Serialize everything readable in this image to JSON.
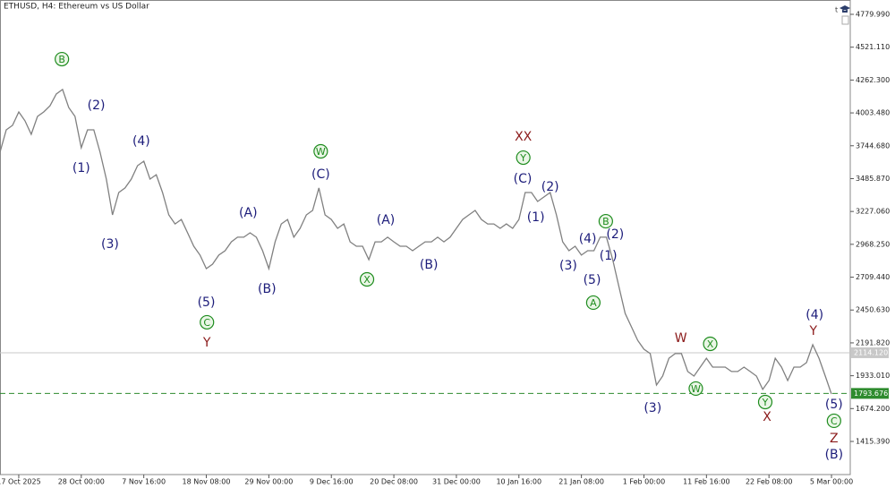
{
  "chart_data": {
    "type": "line",
    "title": "ETHUSD, H4:  Ethereum vs US Dollar",
    "x": [
      0,
      1,
      2,
      3,
      4,
      5,
      6,
      7,
      8,
      9,
      10,
      11,
      12,
      13,
      14,
      15,
      16,
      17,
      18,
      19,
      20,
      21,
      22,
      23,
      24,
      25,
      26,
      27,
      28,
      29,
      30,
      31,
      32,
      33,
      34,
      35,
      36,
      37,
      38,
      39,
      40,
      41,
      42,
      43,
      44,
      45,
      46,
      47,
      48,
      49,
      50,
      51,
      52,
      53,
      54,
      55,
      56,
      57,
      58,
      59,
      60,
      61,
      62,
      63,
      64,
      65,
      66,
      67,
      68,
      69,
      70,
      71,
      72,
      73,
      74,
      75,
      76,
      77,
      78,
      79,
      80,
      81,
      82,
      83,
      84,
      85,
      86,
      87,
      88,
      89,
      90,
      91,
      92,
      93,
      94,
      95,
      96,
      97,
      98,
      99,
      100,
      101,
      102,
      103,
      104,
      105,
      106,
      107,
      108,
      109,
      110,
      111,
      112,
      113,
      114,
      115,
      116,
      117,
      118,
      119,
      120,
      121,
      122,
      123,
      124,
      125,
      126,
      127,
      128,
      129,
      130,
      131,
      132,
      133
    ],
    "series": [
      {
        "name": "ETHUSD",
        "color": "#808080",
        "values": [
          3694,
          3870,
          3905,
          4011,
          3941,
          3835,
          3976,
          4011,
          4060,
          4152,
          4188,
          4046,
          3976,
          3729,
          3870,
          3870,
          3694,
          3482,
          3200,
          3376,
          3412,
          3482,
          3588,
          3623,
          3482,
          3517,
          3376,
          3200,
          3129,
          3164,
          3059,
          2953,
          2883,
          2777,
          2812,
          2883,
          2918,
          2988,
          3024,
          3024,
          3059,
          3024,
          2918,
          2777,
          2988,
          3129,
          3164,
          3024,
          3094,
          3200,
          3235,
          3412,
          3200,
          3164,
          3094,
          3129,
          2988,
          2953,
          2953,
          2847,
          2988,
          2988,
          3024,
          2988,
          2953,
          2953,
          2918,
          2953,
          2988,
          2988,
          3024,
          2988,
          3024,
          3094,
          3164,
          3200,
          3235,
          3164,
          3129,
          3129,
          3094,
          3129,
          3094,
          3164,
          3376,
          3376,
          3306,
          3341,
          3376,
          3200,
          2988,
          2918,
          2953,
          2883,
          2918,
          2918,
          3024,
          3024,
          2847,
          2636,
          2424,
          2318,
          2212,
          2142,
          2107,
          1860,
          1930,
          2071,
          2107,
          2107,
          1966,
          1930,
          2001,
          2071,
          2001,
          2001,
          2001,
          1966,
          1966,
          2001,
          1966,
          1930,
          1825,
          1895,
          2071,
          2001,
          1895,
          2001,
          2001,
          2036,
          2177,
          2071,
          1930,
          1789
        ]
      }
    ],
    "xlim": [
      0,
      136
    ],
    "ylim": [
      1154.4,
      4892.85
    ],
    "xticks": [
      {
        "value": 3,
        "label": "17 Oct 2025"
      },
      {
        "value": 13,
        "label": "28 Oct 00:00"
      },
      {
        "value": 23,
        "label": "7 Nov 16:00"
      },
      {
        "value": 33,
        "label": "18 Nov 08:00"
      },
      {
        "value": 43,
        "label": "29 Nov 00:00"
      },
      {
        "value": 53,
        "label": "9 Dec 16:00"
      },
      {
        "value": 63,
        "label": "20 Dec 08:00"
      },
      {
        "value": 73,
        "label": "31 Dec 00:00"
      },
      {
        "value": 83,
        "label": "10 Jan 16:00"
      },
      {
        "value": 93,
        "label": "21 Jan 08:00"
      },
      {
        "value": 103,
        "label": "1 Feb 00:00"
      },
      {
        "value": 113,
        "label": "11 Feb 16:00"
      },
      {
        "value": 123,
        "label": "22 Feb 08:00"
      },
      {
        "value": 133,
        "label": "5 Mar 00:00"
      }
    ],
    "yticks": [
      {
        "value": 4779.99,
        "label": "4779.990"
      },
      {
        "value": 4521.11,
        "label": "4521.110"
      },
      {
        "value": 4262.3,
        "label": "4262.300"
      },
      {
        "value": 4003.48,
        "label": "4003.480"
      },
      {
        "value": 3744.68,
        "label": "3744.680"
      },
      {
        "value": 3485.87,
        "label": "3485.870"
      },
      {
        "value": 3227.06,
        "label": "3227.060"
      },
      {
        "value": 2968.25,
        "label": "2968.250"
      },
      {
        "value": 2709.44,
        "label": "2709.440"
      },
      {
        "value": 2450.63,
        "label": "2450.630"
      },
      {
        "value": 2191.82,
        "label": "2191.820"
      },
      {
        "value": 1933.01,
        "label": "1933.010"
      },
      {
        "value": 1674.2,
        "label": "1674.200"
      },
      {
        "value": 1415.39,
        "label": "1415.390"
      }
    ],
    "levels": [
      {
        "value": 2114.12,
        "label": "2114.120",
        "color": "#c8c8c8",
        "dashed": false
      },
      {
        "value": 1793.676,
        "label": "1793.676",
        "color": "#2e8b2e",
        "dashed": true
      }
    ],
    "annotations": [
      {
        "text": "B",
        "x": 9.9,
        "y": 4427,
        "color": "#1e8c1e",
        "circled": true
      },
      {
        "text": "(2)",
        "x": 15.4,
        "y": 4067,
        "color": "#1c1c7a",
        "circled": false
      },
      {
        "text": "(1)",
        "x": 13,
        "y": 3574,
        "color": "#1c1c7a",
        "circled": false
      },
      {
        "text": "(4)",
        "x": 22.6,
        "y": 3785,
        "color": "#1c1c7a",
        "circled": false
      },
      {
        "text": "(3)",
        "x": 17.6,
        "y": 2974,
        "color": "#1c1c7a",
        "circled": false
      },
      {
        "text": "(5)",
        "x": 33,
        "y": 2516,
        "color": "#1c1c7a",
        "circled": false
      },
      {
        "text": "C",
        "x": 33.1,
        "y": 2354,
        "color": "#1e8c1e",
        "circled": true
      },
      {
        "text": "Y",
        "x": 33.1,
        "y": 2198,
        "color": "#8b1a1a",
        "circled": false
      },
      {
        "text": "(A)",
        "x": 39.7,
        "y": 3221,
        "color": "#1c1c7a",
        "circled": false
      },
      {
        "text": "(B)",
        "x": 42.7,
        "y": 2622,
        "color": "#1c1c7a",
        "circled": false
      },
      {
        "text": "W",
        "x": 51.3,
        "y": 3701,
        "color": "#1e8c1e",
        "circled": true
      },
      {
        "text": "(C)",
        "x": 51.3,
        "y": 3524,
        "color": "#1c1c7a",
        "circled": false
      },
      {
        "text": "X",
        "x": 58.7,
        "y": 2692,
        "color": "#1e8c1e",
        "circled": true
      },
      {
        "text": "(A)",
        "x": 61.7,
        "y": 3165,
        "color": "#1c1c7a",
        "circled": false
      },
      {
        "text": "(B)",
        "x": 68.6,
        "y": 2812,
        "color": "#1c1c7a",
        "circled": false
      },
      {
        "text": "XX",
        "x": 83.7,
        "y": 3821,
        "color": "#8b1a1a",
        "circled": false
      },
      {
        "text": "Y",
        "x": 83.7,
        "y": 3651,
        "color": "#1e8c1e",
        "circled": true
      },
      {
        "text": "(C)",
        "x": 83.6,
        "y": 3489,
        "color": "#1c1c7a",
        "circled": false
      },
      {
        "text": "(2)",
        "x": 88,
        "y": 3426,
        "color": "#1c1c7a",
        "circled": false
      },
      {
        "text": "(1)",
        "x": 85.7,
        "y": 3186,
        "color": "#1c1c7a",
        "circled": false
      },
      {
        "text": "B",
        "x": 96.9,
        "y": 3150,
        "color": "#1e8c1e",
        "circled": true
      },
      {
        "text": "(4)",
        "x": 94,
        "y": 3017,
        "color": "#1c1c7a",
        "circled": false
      },
      {
        "text": "(2)",
        "x": 98.4,
        "y": 3052,
        "color": "#1c1c7a",
        "circled": false
      },
      {
        "text": "(3)",
        "x": 90.9,
        "y": 2805,
        "color": "#1c1c7a",
        "circled": false
      },
      {
        "text": "(1)",
        "x": 97.3,
        "y": 2882,
        "color": "#1c1c7a",
        "circled": false
      },
      {
        "text": "(5)",
        "x": 94.7,
        "y": 2692,
        "color": "#1c1c7a",
        "circled": false
      },
      {
        "text": "A",
        "x": 94.9,
        "y": 2509,
        "color": "#1e8c1e",
        "circled": true
      },
      {
        "text": "W",
        "x": 108.9,
        "y": 2234,
        "color": "#8b1a1a",
        "circled": false
      },
      {
        "text": "X",
        "x": 113.6,
        "y": 2184,
        "color": "#1e8c1e",
        "circled": true
      },
      {
        "text": "W",
        "x": 111.3,
        "y": 1832,
        "color": "#1e8c1e",
        "circled": true
      },
      {
        "text": "(3)",
        "x": 104.4,
        "y": 1683,
        "color": "#1c1c7a",
        "circled": false
      },
      {
        "text": "Y",
        "x": 122.4,
        "y": 1726,
        "color": "#1e8c1e",
        "circled": true
      },
      {
        "text": "X",
        "x": 122.7,
        "y": 1613,
        "color": "#8b1a1a",
        "circled": false
      },
      {
        "text": "(4)",
        "x": 130.3,
        "y": 2417,
        "color": "#1c1c7a",
        "circled": false
      },
      {
        "text": "Y",
        "x": 130.1,
        "y": 2290,
        "color": "#8b1a1a",
        "circled": false
      },
      {
        "text": "(5)",
        "x": 133.4,
        "y": 1712,
        "color": "#1c1c7a",
        "circled": false
      },
      {
        "text": "C",
        "x": 133.4,
        "y": 1578,
        "color": "#1e8c1e",
        "circled": true
      },
      {
        "text": "Z",
        "x": 133.4,
        "y": 1444,
        "color": "#8b1a1a",
        "circled": false
      },
      {
        "text": "(B)",
        "x": 133.4,
        "y": 1317,
        "color": "#1c1c7a",
        "circled": false
      }
    ]
  }
}
